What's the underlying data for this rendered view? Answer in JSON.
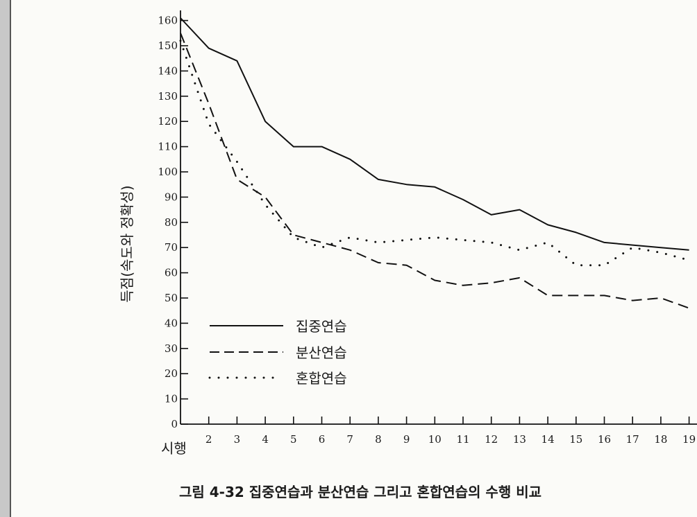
{
  "chart_data": {
    "type": "line",
    "title": "그림 4-32 집중연습과 분산연습 그리고 혼합연습의 수행 비교",
    "ylabel": "득점(속도와 정확성)",
    "x_start_label": "시행",
    "y_tick_labels": [
      "0",
      "10",
      "20",
      "30",
      "40",
      "50",
      "60",
      "70",
      "80",
      "90",
      "100",
      "110",
      "120",
      "130",
      "140",
      "150",
      "160"
    ],
    "x_tick_labels": [
      "2",
      "3",
      "4",
      "5",
      "6",
      "7",
      "8",
      "9",
      "10",
      "11",
      "12",
      "13",
      "14",
      "15",
      "16",
      "17",
      "18",
      "19"
    ],
    "ylim": [
      0,
      160
    ],
    "xlim": [
      1,
      19
    ],
    "grid": false,
    "legend_position": "lower-left",
    "x": [
      1,
      2,
      3,
      4,
      5,
      6,
      7,
      8,
      9,
      10,
      11,
      12,
      13,
      14,
      15,
      16,
      17,
      18,
      19
    ],
    "series": [
      {
        "name": "집중연습",
        "style": "solid",
        "values": [
          161,
          149,
          144,
          120,
          110,
          110,
          105,
          97,
          95,
          94,
          89,
          83,
          85,
          79,
          76,
          72,
          71,
          70,
          69
        ]
      },
      {
        "name": "분산연습",
        "style": "dashed",
        "values": [
          155,
          127,
          97,
          90,
          75,
          72,
          69,
          64,
          63,
          57,
          55,
          56,
          58,
          51,
          51,
          51,
          49,
          50,
          46
        ]
      },
      {
        "name": "혼합연습",
        "style": "dotted",
        "values": [
          152,
          119,
          104,
          87,
          74,
          70,
          74,
          72,
          73,
          74,
          73,
          72,
          69,
          72,
          63,
          63,
          70,
          68,
          65
        ]
      }
    ]
  }
}
